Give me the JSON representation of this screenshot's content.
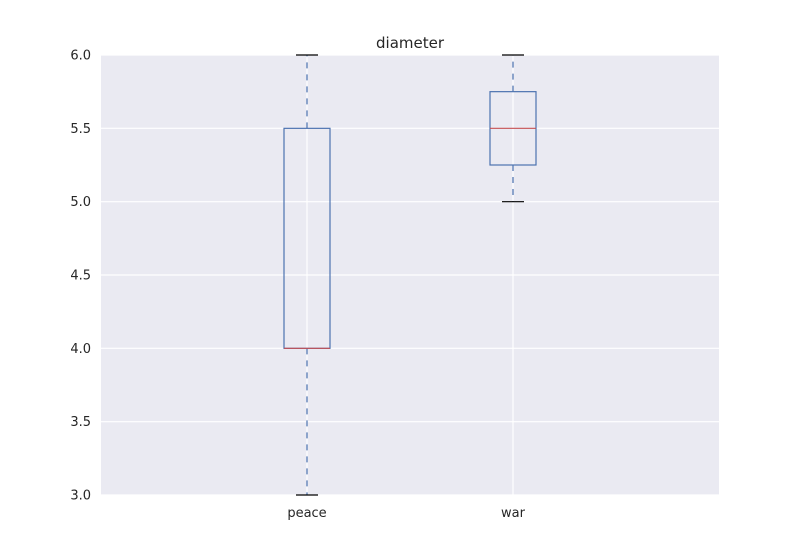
{
  "chart_data": {
    "type": "box",
    "title": "diameter",
    "categories": [
      "peace",
      "war"
    ],
    "ylim": [
      3.0,
      6.0
    ],
    "yticks": [
      "3.0",
      "3.5",
      "4.0",
      "4.5",
      "5.0",
      "5.5",
      "6.0"
    ],
    "grid": true,
    "series": [
      {
        "category": "peace",
        "whisker_low": 3.0,
        "q1": 4.0,
        "median": 4.0,
        "q3": 5.5,
        "whisker_high": 6.0
      },
      {
        "category": "war",
        "whisker_low": 5.0,
        "q1": 5.25,
        "median": 5.5,
        "q3": 5.75,
        "whisker_high": 6.0
      }
    ],
    "colors": {
      "background": "#eaeaf2",
      "grid": "#ffffff",
      "box": "#4c72b0",
      "median": "#c44e52",
      "cap": "#000000"
    }
  }
}
